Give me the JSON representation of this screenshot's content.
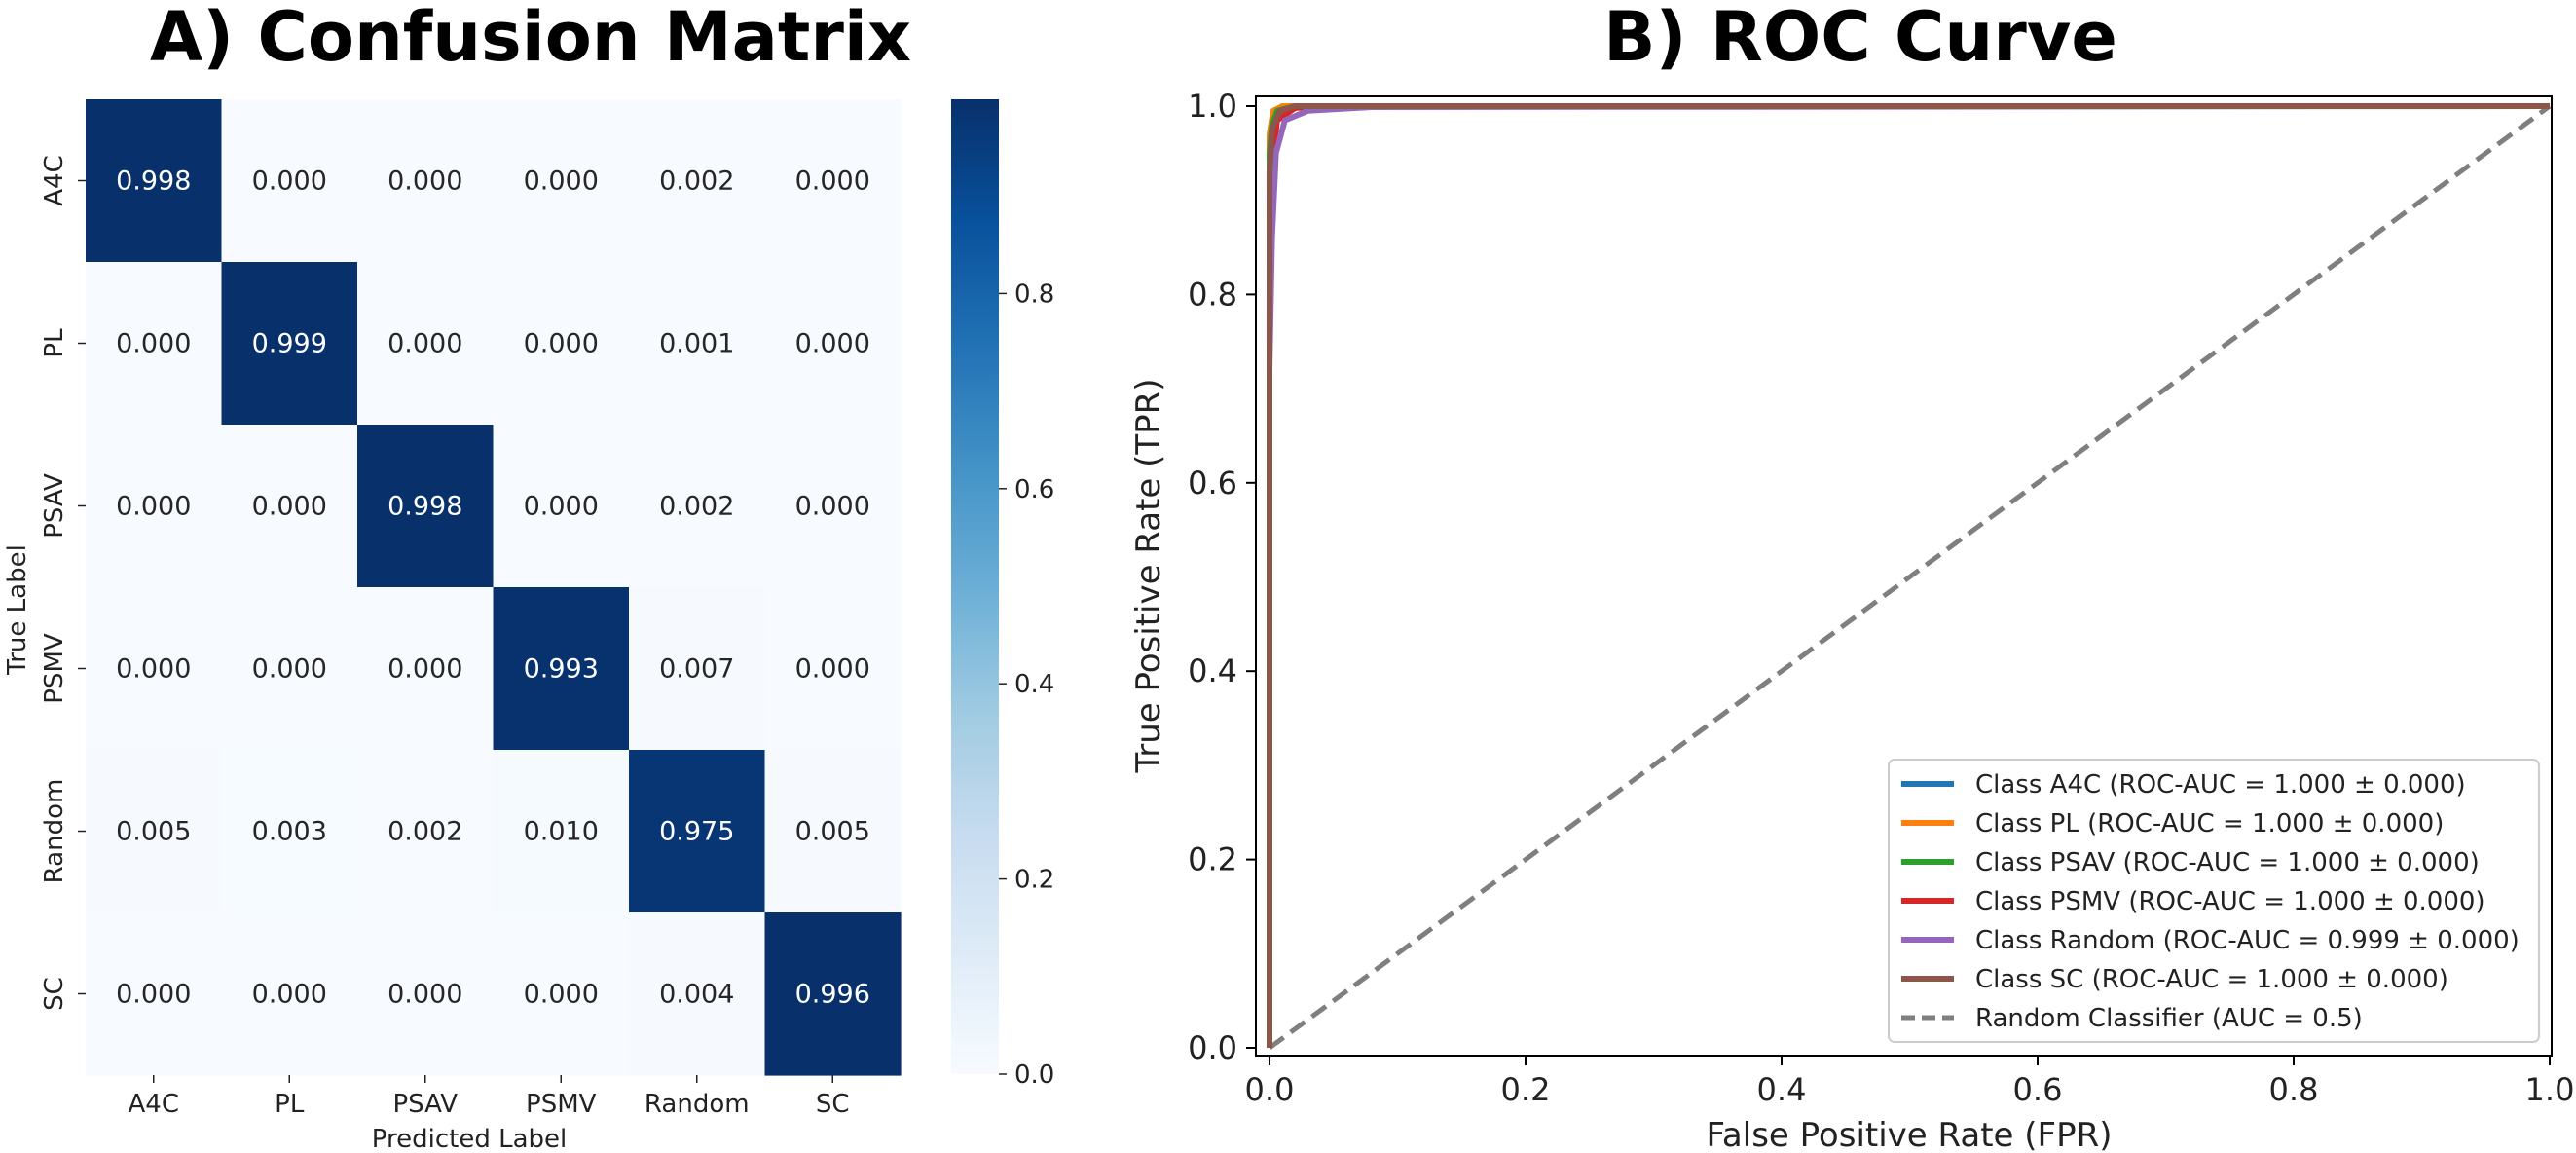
{
  "chart_data": [
    {
      "type": "heatmap",
      "title": "A) Confusion Matrix",
      "xlabel": "Predicted Label",
      "ylabel": "True Label",
      "x_categories": [
        "A4C",
        "PL",
        "PSAV",
        "PSMV",
        "Random",
        "SC"
      ],
      "y_categories": [
        "A4C",
        "PL",
        "PSAV",
        "PSMV",
        "Random",
        "SC"
      ],
      "values": [
        [
          0.998,
          0.0,
          0.0,
          0.0,
          0.002,
          0.0
        ],
        [
          0.0,
          0.999,
          0.0,
          0.0,
          0.001,
          0.0
        ],
        [
          0.0,
          0.0,
          0.998,
          0.0,
          0.002,
          0.0
        ],
        [
          0.0,
          0.0,
          0.0,
          0.993,
          0.007,
          0.0
        ],
        [
          0.005,
          0.003,
          0.002,
          0.01,
          0.975,
          0.005
        ],
        [
          0.0,
          0.0,
          0.0,
          0.0,
          0.004,
          0.996
        ]
      ],
      "value_labels": [
        [
          "0.998",
          "0.000",
          "0.000",
          "0.000",
          "0.002",
          "0.000"
        ],
        [
          "0.000",
          "0.999",
          "0.000",
          "0.000",
          "0.001",
          "0.000"
        ],
        [
          "0.000",
          "0.000",
          "0.998",
          "0.000",
          "0.002",
          "0.000"
        ],
        [
          "0.000",
          "0.000",
          "0.000",
          "0.993",
          "0.007",
          "0.000"
        ],
        [
          "0.005",
          "0.003",
          "0.002",
          "0.010",
          "0.975",
          "0.005"
        ],
        [
          "0.000",
          "0.000",
          "0.000",
          "0.000",
          "0.004",
          "0.996"
        ]
      ],
      "colorscale": "Blues",
      "colorbar": {
        "range": [
          0,
          0.999
        ],
        "ticks": [
          0.0,
          0.2,
          0.4,
          0.6,
          0.8
        ],
        "tick_labels": [
          "0.0",
          "0.2",
          "0.4",
          "0.6",
          "0.8"
        ]
      }
    },
    {
      "type": "line",
      "title": "B) ROC Curve",
      "xlabel": "False Positive Rate (FPR)",
      "ylabel": "True Positive Rate (TPR)",
      "xlim": [
        0,
        1
      ],
      "ylim": [
        0,
        1
      ],
      "x_ticks": [
        0.0,
        0.2,
        0.4,
        0.6,
        0.8,
        1.0
      ],
      "x_tick_labels": [
        "0.0",
        "0.2",
        "0.4",
        "0.6",
        "0.8",
        "1.0"
      ],
      "y_ticks": [
        0.0,
        0.2,
        0.4,
        0.6,
        0.8,
        1.0
      ],
      "y_tick_labels": [
        "0.0",
        "0.2",
        "0.4",
        "0.6",
        "0.8",
        "1.0"
      ],
      "legend_position": "bottom-right",
      "series": [
        {
          "name": "Class A4C (ROC-AUC = 1.000 ± 0.000)",
          "color": "#1f77b4",
          "dashed": false,
          "points": [
            [
              0,
              0
            ],
            [
              0,
              0.96
            ],
            [
              0.003,
              0.99
            ],
            [
              0.01,
              0.998
            ],
            [
              0.05,
              1.0
            ],
            [
              1,
              1
            ]
          ]
        },
        {
          "name": "Class PL (ROC-AUC = 1.000 ± 0.000)",
          "color": "#ff7f0e",
          "dashed": false,
          "points": [
            [
              0,
              0
            ],
            [
              0,
              0.97
            ],
            [
              0.003,
              0.995
            ],
            [
              0.01,
              1.0
            ],
            [
              1,
              1
            ]
          ]
        },
        {
          "name": "Class PSAV (ROC-AUC = 1.000 ± 0.000)",
          "color": "#2ca02c",
          "dashed": false,
          "points": [
            [
              0,
              0
            ],
            [
              0,
              0.95
            ],
            [
              0.002,
              0.98
            ],
            [
              0.006,
              0.995
            ],
            [
              0.02,
              1.0
            ],
            [
              1,
              1
            ]
          ]
        },
        {
          "name": "Class PSMV (ROC-AUC = 1.000 ± 0.000)",
          "color": "#d62728",
          "dashed": false,
          "points": [
            [
              0,
              0
            ],
            [
              0,
              0.87
            ],
            [
              0.002,
              0.94
            ],
            [
              0.006,
              0.985
            ],
            [
              0.02,
              0.998
            ],
            [
              0.05,
              1.0
            ],
            [
              1,
              1
            ]
          ]
        },
        {
          "name": "Class Random (ROC-AUC = 0.999 ± 0.000)",
          "color": "#9467bd",
          "dashed": false,
          "points": [
            [
              0,
              0
            ],
            [
              0,
              0.72
            ],
            [
              0.002,
              0.86
            ],
            [
              0.005,
              0.95
            ],
            [
              0.012,
              0.985
            ],
            [
              0.03,
              0.995
            ],
            [
              0.08,
              0.999
            ],
            [
              1,
              1
            ]
          ]
        },
        {
          "name": "Class SC (ROC-AUC = 1.000 ± 0.000)",
          "color": "#8c564b",
          "dashed": false,
          "points": [
            [
              0,
              0
            ],
            [
              0,
              0.93
            ],
            [
              0.002,
              0.975
            ],
            [
              0.008,
              0.995
            ],
            [
              0.02,
              1.0
            ],
            [
              1,
              1
            ]
          ]
        },
        {
          "name": "Random Classifier (AUC = 0.5)",
          "color": "#7f7f7f",
          "dashed": true,
          "points": [
            [
              0,
              0
            ],
            [
              1,
              1
            ]
          ]
        }
      ]
    }
  ]
}
